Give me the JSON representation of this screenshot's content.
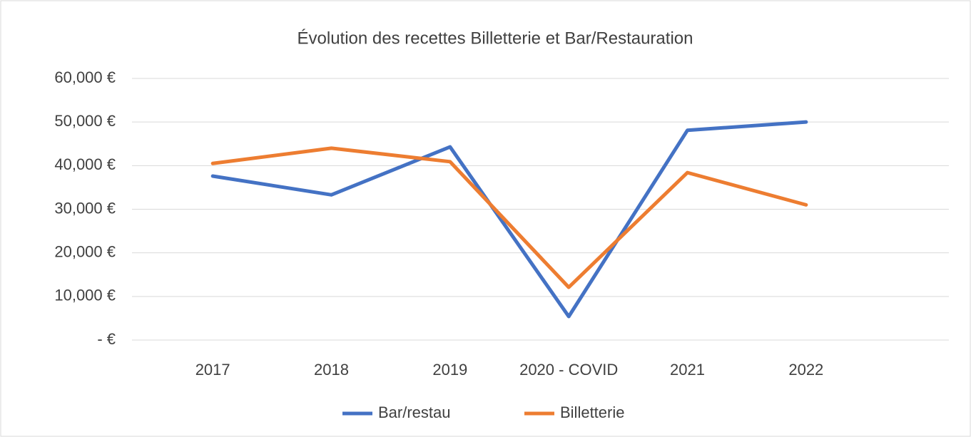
{
  "chart_data": {
    "type": "line",
    "title": "Évolution des recettes Billetterie et Bar/Restauration",
    "categories": [
      "2017",
      "2018",
      "2019",
      "2020 - COVID",
      "2021",
      "2022"
    ],
    "series": [
      {
        "name": "Bar/restau",
        "color": "#4472c4",
        "values": [
          37600,
          33300,
          44300,
          5400,
          48100,
          50000
        ]
      },
      {
        "name": "Billetterie",
        "color": "#ed7d31",
        "values": [
          40500,
          44000,
          40900,
          12100,
          38400,
          31000
        ]
      }
    ],
    "ylim": [
      0,
      60000
    ],
    "yticks": [
      {
        "value": 0,
        "label": "-   €"
      },
      {
        "value": 10000,
        "label": "10,000  €"
      },
      {
        "value": 20000,
        "label": "20,000  €"
      },
      {
        "value": 30000,
        "label": "30,000  €"
      },
      {
        "value": 40000,
        "label": "40,000  €"
      },
      {
        "value": 50000,
        "label": "50,000  €"
      },
      {
        "value": 60000,
        "label": "60,000  €"
      }
    ],
    "grid": true,
    "legend": "bottom"
  }
}
